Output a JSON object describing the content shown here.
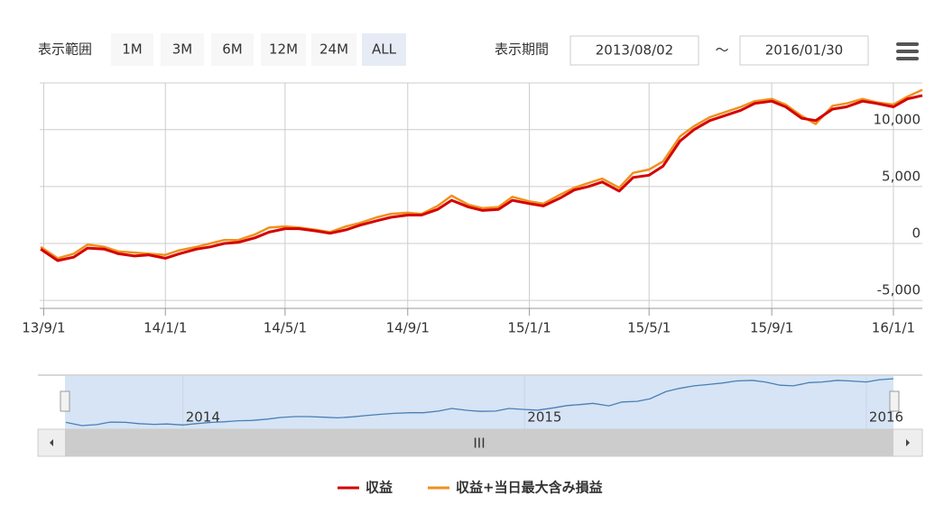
{
  "ui": {
    "range_label": "表示範囲",
    "buttons": [
      "1M",
      "3M",
      "6M",
      "12M",
      "24M",
      "ALL"
    ],
    "selected_index": 5,
    "period_label": "表示期間",
    "from": "2013/08/02",
    "tilde": "～",
    "to": "2016/01/30"
  },
  "chart_data": {
    "type": "line",
    "x": [
      "2013-08-29",
      "2013-09-15",
      "2013-10-01",
      "2013-10-15",
      "2013-11-01",
      "2013-11-15",
      "2013-12-01",
      "2013-12-15",
      "2014-01-01",
      "2014-01-15",
      "2014-02-01",
      "2014-02-15",
      "2014-03-01",
      "2014-03-15",
      "2014-04-01",
      "2014-04-15",
      "2014-05-01",
      "2014-05-15",
      "2014-06-01",
      "2014-06-15",
      "2014-07-01",
      "2014-07-15",
      "2014-08-01",
      "2014-08-15",
      "2014-09-01",
      "2014-09-15",
      "2014-10-01",
      "2014-10-15",
      "2014-11-01",
      "2014-11-15",
      "2014-12-01",
      "2014-12-15",
      "2015-01-01",
      "2015-01-15",
      "2015-02-01",
      "2015-02-15",
      "2015-03-01",
      "2015-03-15",
      "2015-04-01",
      "2015-04-15",
      "2015-05-01",
      "2015-05-15",
      "2015-06-01",
      "2015-06-15",
      "2015-07-01",
      "2015-07-15",
      "2015-08-01",
      "2015-08-15",
      "2015-09-01",
      "2015-09-15",
      "2015-10-01",
      "2015-10-15",
      "2015-11-01",
      "2015-11-15",
      "2015-12-01",
      "2015-12-15",
      "2016-01-01",
      "2016-01-15",
      "2016-01-30"
    ],
    "series": [
      {
        "name": "収益+当日最大含み損益",
        "color": "#f0901e",
        "values": [
          -300,
          -1300,
          -900,
          -100,
          -300,
          -700,
          -800,
          -900,
          -1000,
          -600,
          -300,
          0,
          300,
          300,
          800,
          1400,
          1500,
          1400,
          1200,
          1000,
          1500,
          1800,
          2300,
          2600,
          2700,
          2600,
          3300,
          4200,
          3400,
          3100,
          3200,
          4100,
          3700,
          3500,
          4300,
          4900,
          5300,
          5700,
          4900,
          6200,
          6500,
          7200,
          9400,
          10300,
          11100,
          11500,
          12000,
          12500,
          12700,
          12200,
          11200,
          10500,
          12100,
          12300,
          12700,
          12400,
          12200,
          12900,
          13500
        ]
      },
      {
        "name": "収益",
        "color": "#d40000",
        "values": [
          -500,
          -1500,
          -1200,
          -400,
          -500,
          -900,
          -1100,
          -1000,
          -1300,
          -900,
          -500,
          -300,
          0,
          100,
          500,
          1000,
          1300,
          1300,
          1100,
          900,
          1200,
          1600,
          2000,
          2300,
          2500,
          2500,
          3000,
          3800,
          3200,
          2900,
          3000,
          3800,
          3500,
          3300,
          4000,
          4700,
          5000,
          5400,
          4600,
          5800,
          6000,
          6800,
          9000,
          10000,
          10800,
          11200,
          11700,
          12300,
          12500,
          12000,
          11000,
          10800,
          11800,
          12000,
          12500,
          12300,
          12000,
          12700,
          13000
        ]
      }
    ],
    "xlim": [
      "2013-08-28",
      "2016-01-30"
    ],
    "xticks": [
      {
        "value": "2013-09-01",
        "label": "13/9/1"
      },
      {
        "value": "2014-01-01",
        "label": "14/1/1"
      },
      {
        "value": "2014-05-01",
        "label": "14/5/1"
      },
      {
        "value": "2014-09-01",
        "label": "14/9/1"
      },
      {
        "value": "2015-01-01",
        "label": "15/1/1"
      },
      {
        "value": "2015-05-01",
        "label": "15/5/1"
      },
      {
        "value": "2015-09-01",
        "label": "15/9/1"
      },
      {
        "value": "2016-01-01",
        "label": "16/1/1"
      }
    ],
    "ylim": [
      -5700,
      14100
    ],
    "yticks": [
      {
        "value": -5000,
        "label": "-5,000"
      },
      0,
      {
        "value": 5000,
        "label": "5,000"
      },
      {
        "value": 10000,
        "label": "10,000"
      }
    ],
    "grid": true,
    "navigator_xticks": [
      {
        "value": "2014-01-01",
        "label": "2014"
      },
      {
        "value": "2015-01-01",
        "label": "2015"
      },
      {
        "value": "2016-01-01",
        "label": "2016"
      }
    ]
  }
}
